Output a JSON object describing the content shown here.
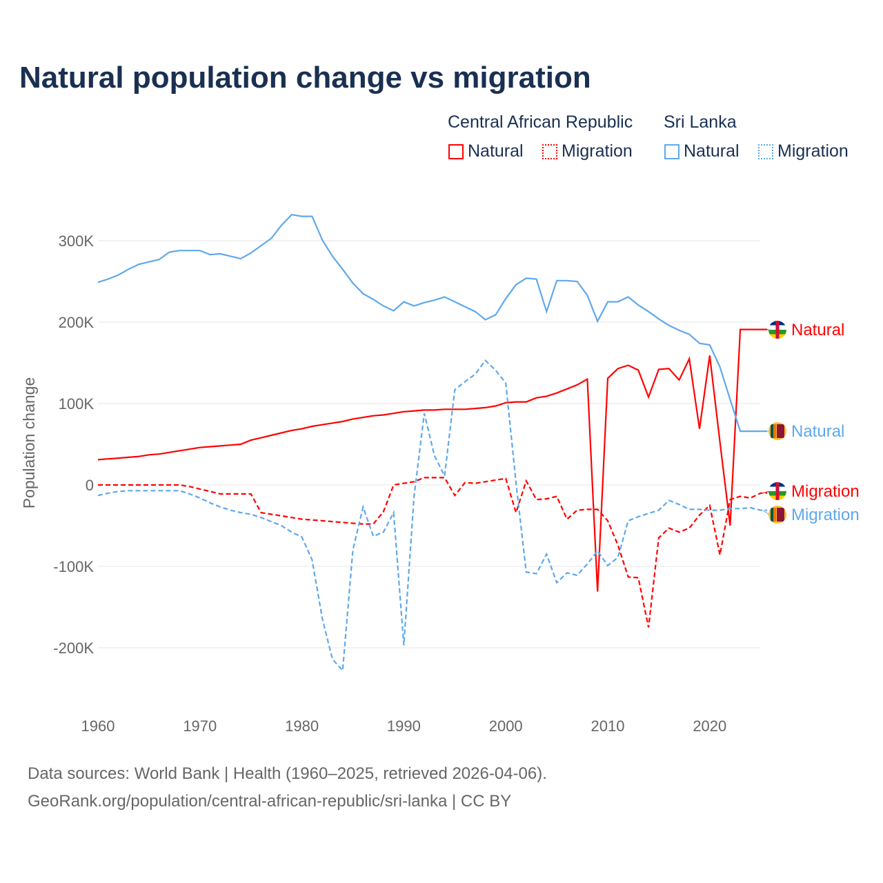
{
  "chart_data": {
    "type": "line",
    "title": "Natural population change vs migration",
    "ylabel": "Population change",
    "xlabel": "",
    "xlim": [
      1960,
      2025
    ],
    "ylim": [
      -250000,
      330000
    ],
    "xticks": [
      "1960",
      "1970",
      "1980",
      "1990",
      "2000",
      "2010",
      "2020"
    ],
    "yticks": [
      {
        "v": 300000,
        "l": "300K"
      },
      {
        "v": 200000,
        "l": "200K"
      },
      {
        "v": 100000,
        "l": "100K"
      },
      {
        "v": 0,
        "l": "0"
      },
      {
        "v": -100000,
        "l": "-100K"
      },
      {
        "v": -200000,
        "l": "-200K"
      }
    ],
    "grid": true,
    "legend_groups": [
      "Central African Republic",
      "Sri Lanka"
    ],
    "x_start": 1960,
    "series": [
      {
        "name": "Natural",
        "country": "Central African Republic",
        "color": "#ff0000",
        "dashed": false,
        "end_label": "Natural",
        "values_k": [
          31,
          32,
          33,
          34,
          35,
          37,
          38,
          40,
          42,
          44,
          46,
          47,
          48,
          49,
          50,
          55,
          58,
          61,
          64,
          67,
          69,
          72,
          74,
          76,
          78,
          81,
          83,
          85,
          86,
          88,
          90,
          91,
          92,
          92,
          93,
          93,
          93,
          94,
          95,
          97,
          101,
          102,
          102,
          107,
          109,
          113,
          118,
          123,
          130,
          -131,
          131,
          143,
          147,
          141,
          108,
          142,
          143,
          129,
          155,
          69,
          159,
          53,
          -50,
          191,
          191,
          191
        ]
      },
      {
        "name": "Migration",
        "country": "Central African Republic",
        "color": "#ff0000",
        "dashed": true,
        "end_label": "Migration",
        "values_k": [
          0,
          0,
          0,
          0,
          0,
          0,
          0,
          0,
          0,
          -2,
          -5,
          -8,
          -11,
          -11,
          -11,
          -11,
          -34,
          -36,
          -38,
          -40,
          -42,
          -43,
          -44,
          -45,
          -46,
          -47,
          -48,
          -48,
          -33,
          0,
          2,
          4,
          9,
          9,
          9,
          -13,
          3,
          2,
          4,
          6,
          8,
          -34,
          5,
          -18,
          -17,
          -14,
          -42,
          -31,
          -30,
          -30,
          -44,
          -74,
          -113,
          -114,
          -175,
          -65,
          -53,
          -58,
          -53,
          -37,
          -25,
          -86,
          -18,
          -14,
          -16,
          -10
        ]
      },
      {
        "name": "Natural",
        "country": "Sri Lanka",
        "color": "#5ea8ec",
        "dashed": false,
        "end_label": "Natural",
        "values_k": [
          249,
          253,
          258,
          265,
          271,
          274,
          277,
          286,
          288,
          288,
          288,
          283,
          284,
          281,
          278,
          285,
          294,
          303,
          319,
          332,
          330,
          330,
          301,
          281,
          265,
          248,
          235,
          228,
          220,
          214,
          225,
          220,
          224,
          227,
          231,
          225,
          219,
          213,
          203,
          209,
          229,
          246,
          254,
          253,
          213,
          251,
          251,
          250,
          233,
          201,
          225,
          225,
          231,
          221,
          213,
          204,
          196,
          190,
          185,
          174,
          172,
          145,
          105,
          66,
          66,
          66
        ]
      },
      {
        "name": "Migration",
        "country": "Sri Lanka",
        "color": "#5ea8ec",
        "dashed": true,
        "end_label": "Migration",
        "values_k": [
          -13,
          -10,
          -8,
          -7,
          -7,
          -7,
          -7,
          -7,
          -7,
          -11,
          -16,
          -22,
          -27,
          -31,
          -34,
          -36,
          -40,
          -45,
          -50,
          -58,
          -64,
          -92,
          -164,
          -214,
          -228,
          -80,
          -27,
          -63,
          -58,
          -34,
          -197,
          -14,
          88,
          36,
          11,
          117,
          127,
          136,
          153,
          141,
          125,
          3,
          -107,
          -109,
          -85,
          -120,
          -108,
          -111,
          -97,
          -81,
          -99,
          -89,
          -44,
          -39,
          -35,
          -31,
          -19,
          -24,
          -30,
          -30,
          -31,
          -31,
          -29,
          -29,
          -28,
          -31
        ]
      }
    ]
  },
  "title": "Natural population change vs migration",
  "legend": {
    "group1": "Central African Republic",
    "group2": "Sri Lanka",
    "natural": "Natural",
    "migration": "Migration"
  },
  "source": {
    "line1": "Data sources: World Bank | Health (1960–2025, retrieved 2026-04-06).",
    "line2": "GeoRank.org/population/central-african-republic/sri-lanka | CC BY"
  }
}
